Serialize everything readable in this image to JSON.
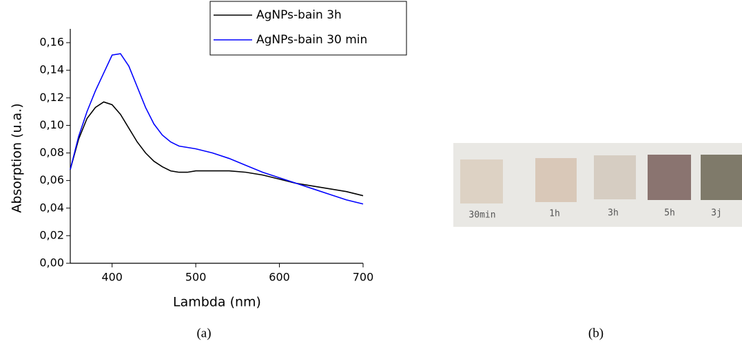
{
  "chart_data": {
    "type": "line",
    "xlabel": "Lambda (nm)",
    "ylabel": "Absorption (u.a.)",
    "x": [
      350,
      360,
      370,
      380,
      390,
      400,
      410,
      420,
      430,
      440,
      450,
      460,
      470,
      480,
      490,
      500,
      520,
      540,
      560,
      580,
      600,
      620,
      640,
      660,
      680,
      700
    ],
    "series": [
      {
        "name": "AgNPs-bain 3h",
        "color": "#000000",
        "values": [
          0.068,
          0.09,
          0.105,
          0.113,
          0.117,
          0.115,
          0.108,
          0.098,
          0.088,
          0.08,
          0.074,
          0.07,
          0.067,
          0.066,
          0.066,
          0.067,
          0.067,
          0.067,
          0.066,
          0.064,
          0.061,
          0.058,
          0.056,
          0.054,
          0.052,
          0.049
        ]
      },
      {
        "name": "AgNPs-bain 30 min",
        "color": "#0000ff",
        "values": [
          0.068,
          0.092,
          0.11,
          0.125,
          0.138,
          0.151,
          0.152,
          0.143,
          0.128,
          0.113,
          0.101,
          0.093,
          0.088,
          0.085,
          0.084,
          0.083,
          0.08,
          0.076,
          0.071,
          0.066,
          0.062,
          0.058,
          0.054,
          0.05,
          0.046,
          0.043
        ]
      }
    ],
    "xlim": [
      350,
      700
    ],
    "xticks": [
      400,
      500,
      600,
      700
    ],
    "ylim": [
      0,
      0.17
    ],
    "yticks": [
      {
        "value": 0,
        "label": "0,00"
      },
      {
        "value": 0.02,
        "label": "0,02"
      },
      {
        "value": 0.04,
        "label": "0,04"
      },
      {
        "value": 0.06,
        "label": "0,06"
      },
      {
        "value": 0.08,
        "label": "0,08"
      },
      {
        "value": 0.1,
        "label": "0,10"
      },
      {
        "value": 0.12,
        "label": "0,12"
      },
      {
        "value": 0.14,
        "label": "0,14"
      },
      {
        "value": 0.16,
        "label": "0,16"
      }
    ],
    "legend": "top-right"
  },
  "photo": {
    "labels": [
      "30min",
      "1h",
      "3h",
      "5h",
      "3j"
    ]
  },
  "captions": [
    "(a)",
    "(b)"
  ]
}
